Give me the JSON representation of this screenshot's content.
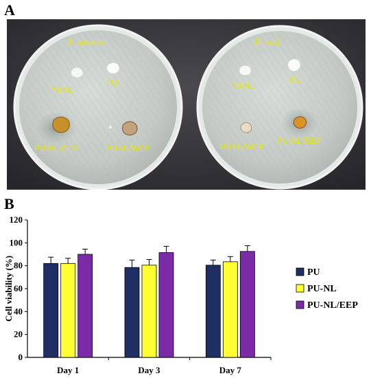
{
  "figure": {
    "panel_a_letter": "A",
    "panel_b_letter": "B"
  },
  "photo": {
    "left_plate": {
      "species": "S. aureus",
      "labels": [
        "PU-NL",
        "PU",
        "PU-NL /EEP",
        "PU-NL/WEP"
      ]
    },
    "right_plate": {
      "species": "E. coli",
      "labels": [
        "PU-NL",
        "PU",
        "PU-NL/WEP",
        "PU-NL /EEP"
      ]
    }
  },
  "chart_data": {
    "type": "bar",
    "categories": [
      "Day 1",
      "Day 3",
      "Day 7"
    ],
    "ylabel": "Cell viability (%)",
    "xlabel": "",
    "ylim": [
      0,
      120
    ],
    "yticks": [
      0,
      20,
      40,
      60,
      80,
      100,
      120
    ],
    "legend_position": "right",
    "series": [
      {
        "name": "PU",
        "color": "#1f2f63",
        "values": [
          82,
          78.5,
          80.5
        ],
        "errors": [
          5.5,
          6.5,
          4.5
        ]
      },
      {
        "name": "PU-NL",
        "color": "#ffff33",
        "values": [
          82,
          80.5,
          83.5
        ],
        "errors": [
          4.5,
          5,
          4.5
        ]
      },
      {
        "name": "PU-NL/EEP",
        "color": "#7b2aa8",
        "values": [
          90,
          91.5,
          92.5
        ],
        "errors": [
          4.5,
          5.5,
          5
        ]
      }
    ]
  }
}
